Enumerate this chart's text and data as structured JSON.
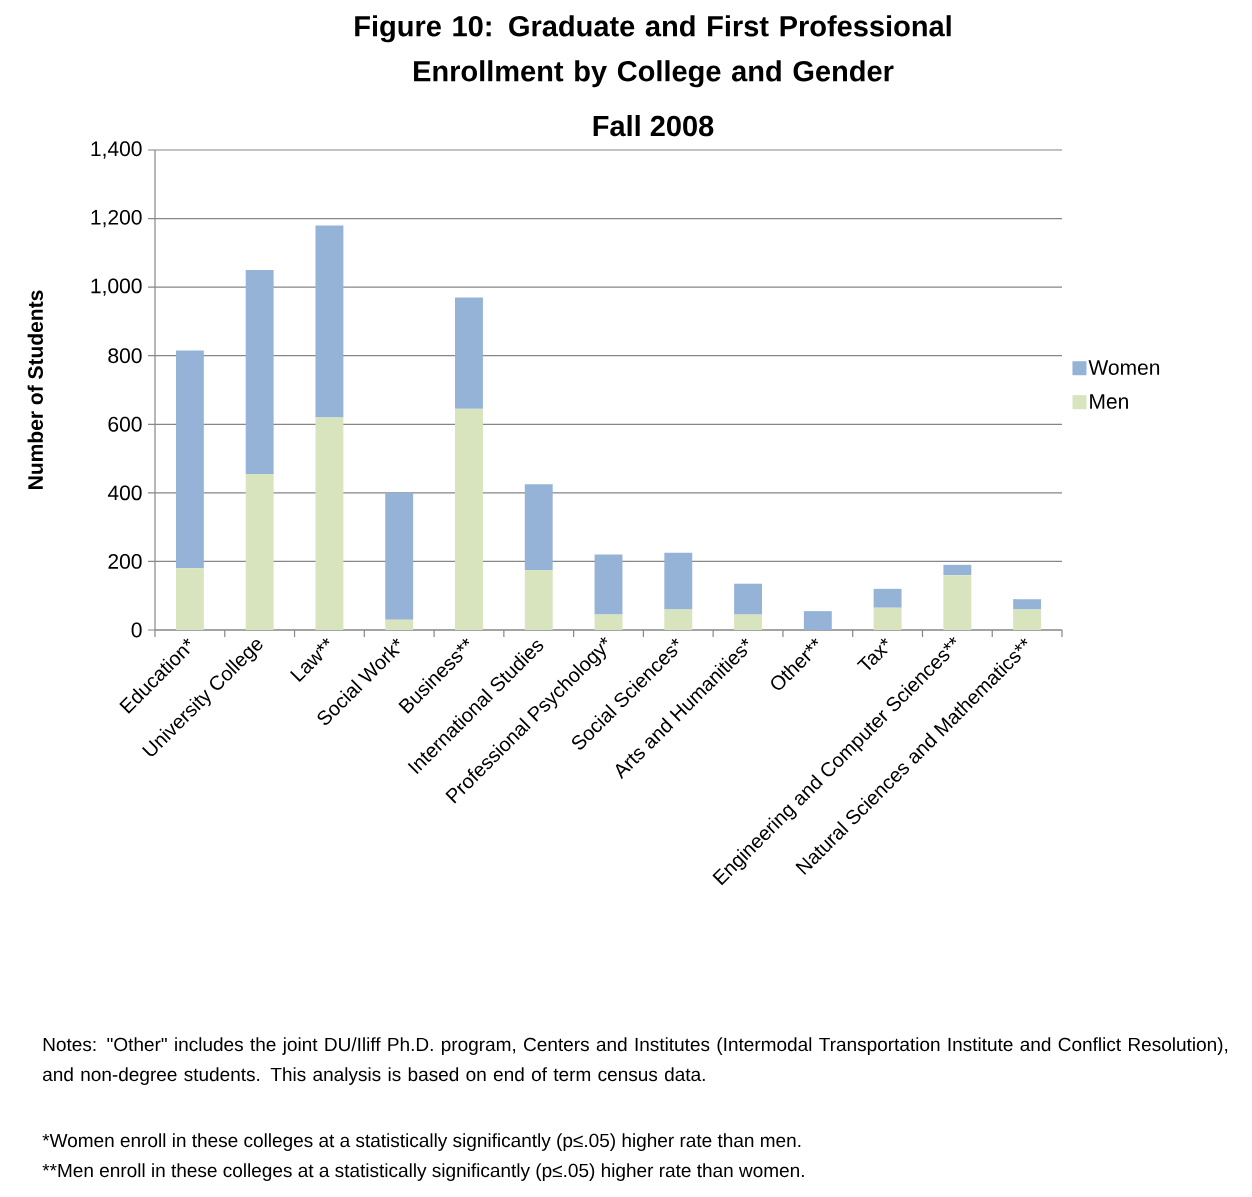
{
  "chart_data": {
    "type": "bar",
    "title": "Figure 10: Graduate and First Professional Enrollment by College and Gender",
    "subtitle": "Fall 2008",
    "ylabel": "Number of Students",
    "categories": [
      "Education*",
      "University College",
      "Law**",
      "Social Work*",
      "Business**",
      "International Studies",
      "Professional Psychology*",
      "Social Sciences*",
      "Arts and Humanities*",
      "Other**",
      "Tax*",
      "Engineering and Computer Sciences**",
      "Natural Sciences and Mathematics**"
    ],
    "series": [
      {
        "name": "Men",
        "color": "#d7e4bd",
        "values": [
          180,
          455,
          620,
          30,
          645,
          175,
          45,
          60,
          45,
          0,
          65,
          160,
          60
        ]
      },
      {
        "name": "Women",
        "color": "#95b3d7",
        "values": [
          635,
          595,
          560,
          370,
          325,
          250,
          175,
          165,
          90,
          55,
          55,
          30,
          30
        ]
      }
    ],
    "stacked": true,
    "ylim": [
      0,
      1400
    ],
    "yticks": [
      0,
      200,
      400,
      600,
      800,
      {
        "value": 1000,
        "label": "1,000"
      },
      {
        "value": 1200,
        "label": "1,200"
      },
      {
        "value": 1400,
        "label": "1,400"
      }
    ],
    "grid": "y",
    "legend": "right",
    "annotations": [
      "Notes: \"Other\" includes the joint DU/Iliff Ph.D. program, Centers and Institutes (Intermodal Transportation Institute and Conflict Resolution), and non-degree students. This analysis is based on end of term census data.",
      "*Women enroll in these colleges at a statistically significantly (p≤.05) higher rate than men.",
      "**Men enroll in these colleges at a statistically significantly (p≤.05) higher rate than women."
    ]
  }
}
